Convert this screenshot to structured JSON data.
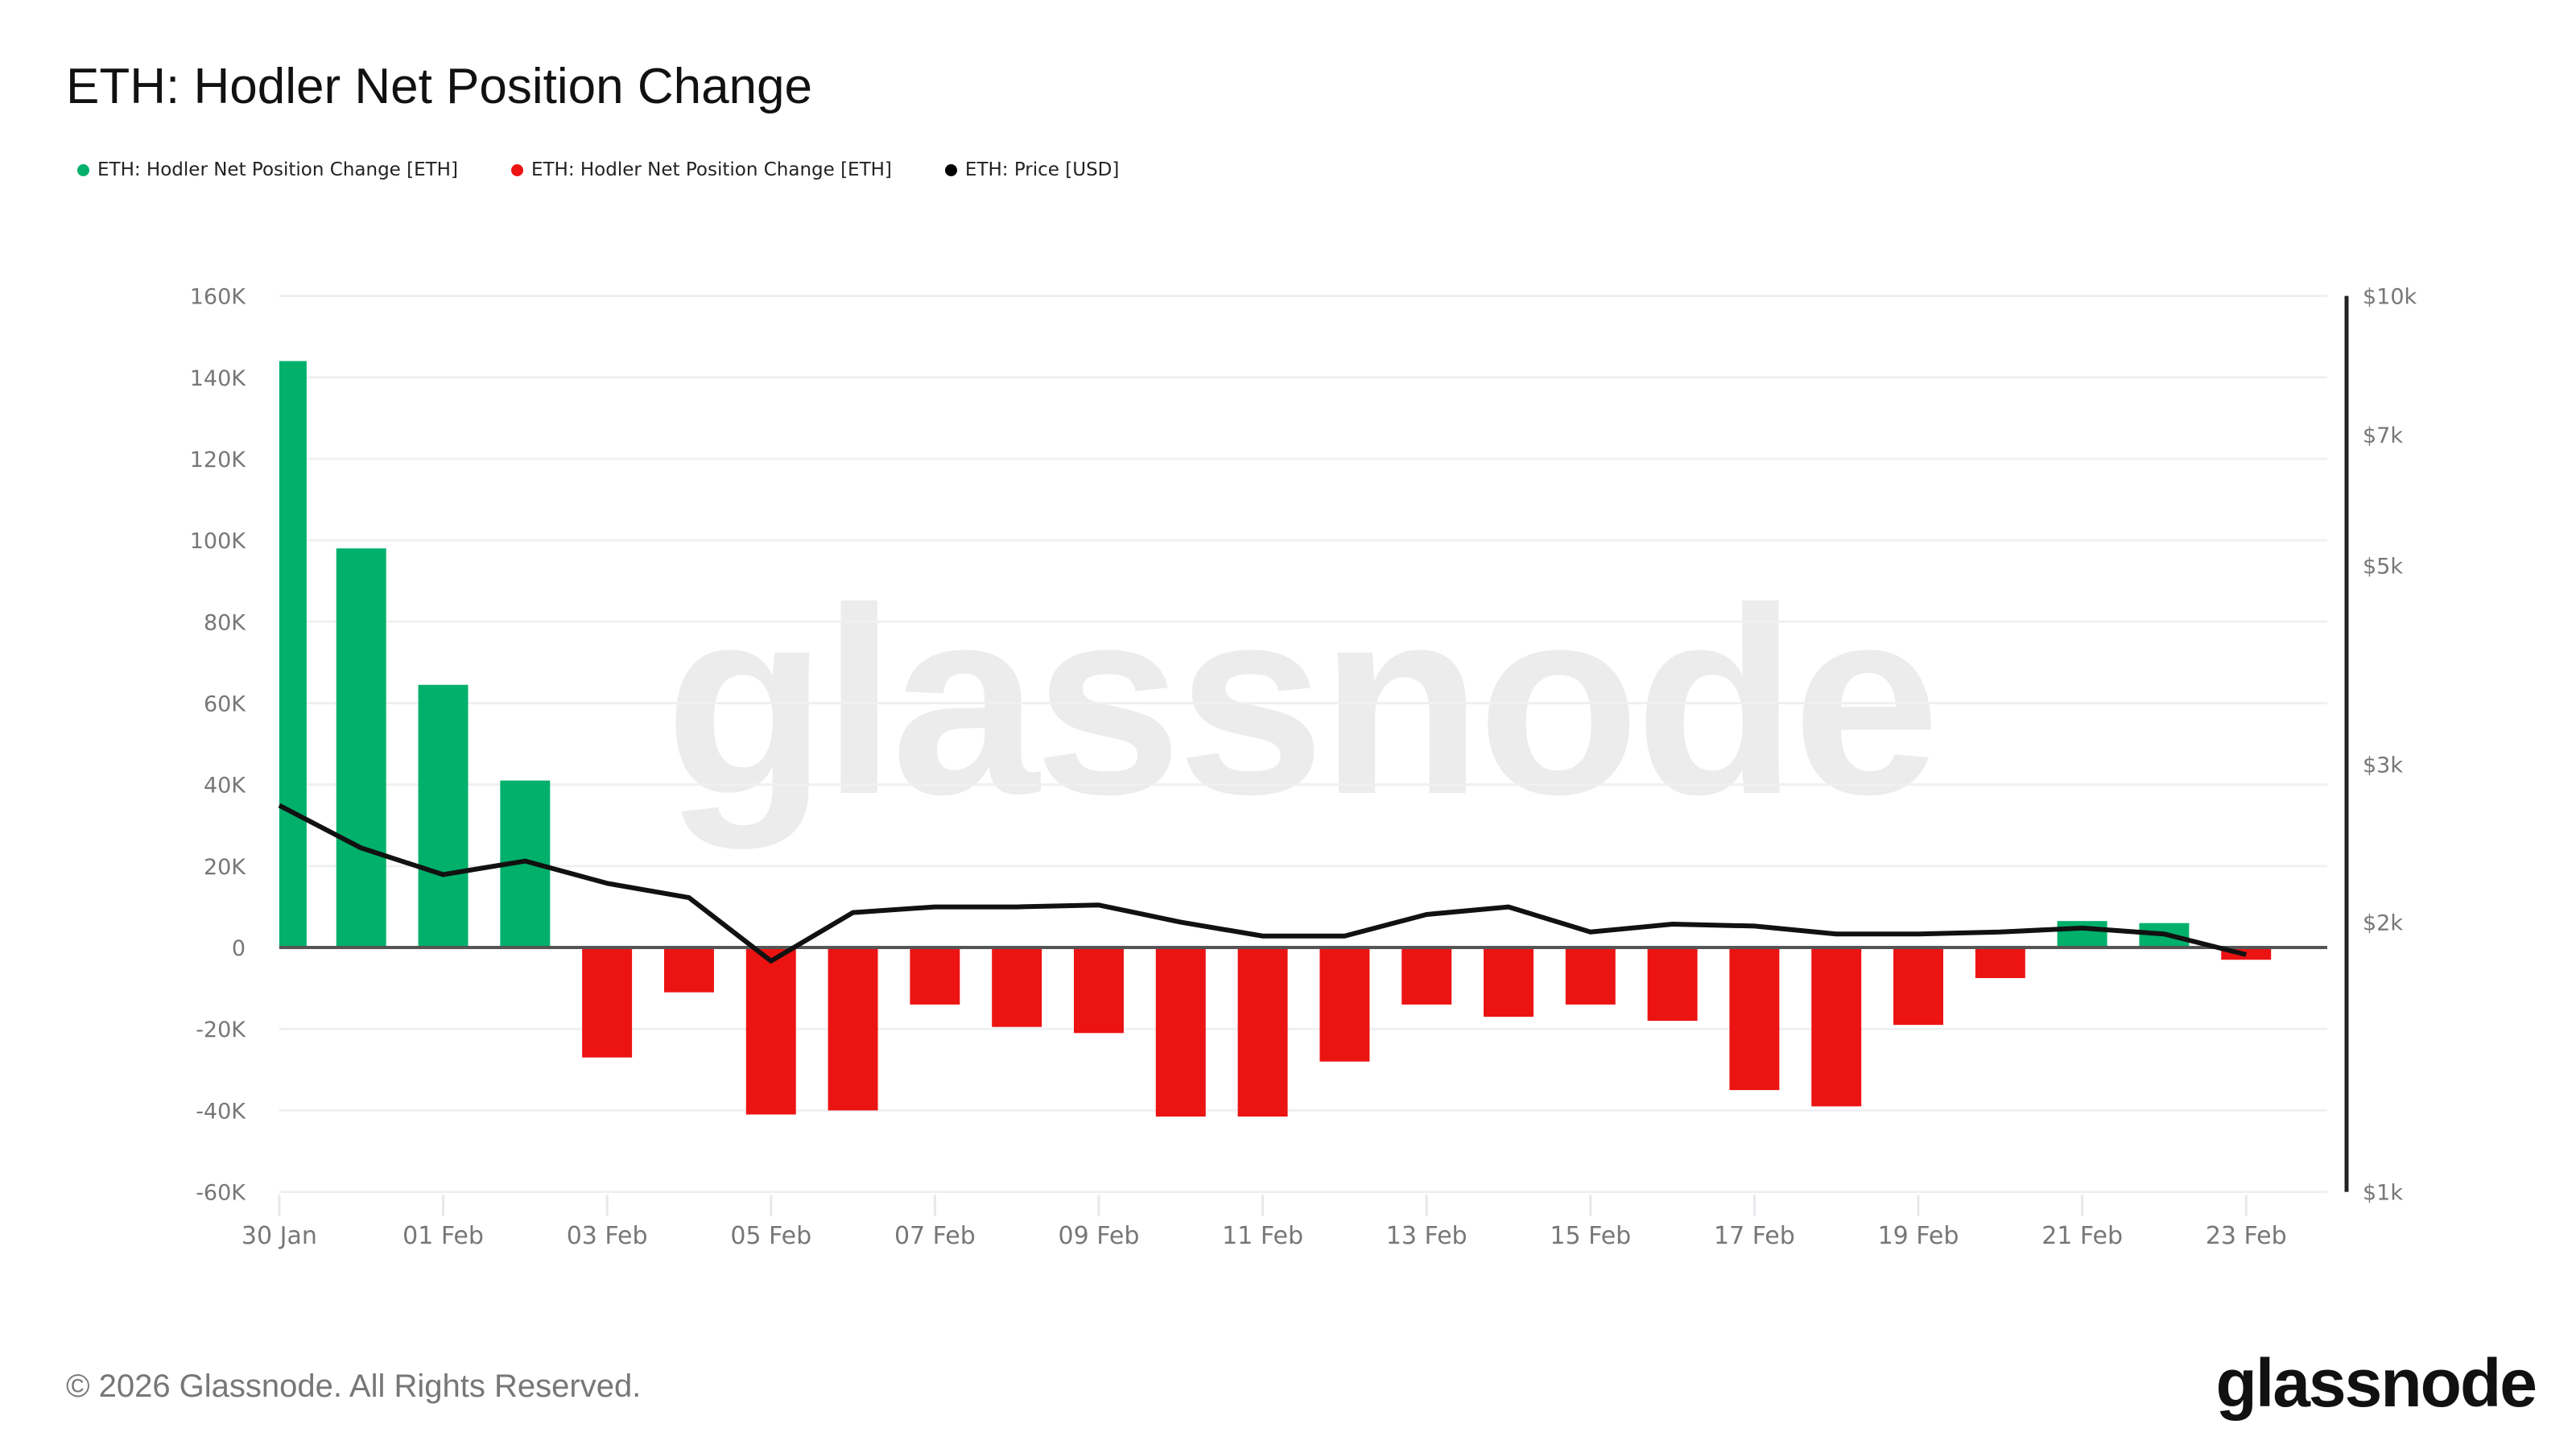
{
  "title": "ETH: Hodler Net Position Change",
  "legend": [
    {
      "label": "ETH: Hodler Net Position Change [ETH]",
      "color": "#00b06b"
    },
    {
      "label": "ETH: Hodler Net Position Change [ETH]",
      "color": "#ec1313"
    },
    {
      "label": "ETH: Price [USD]",
      "color": "#000000"
    }
  ],
  "watermark": "glassnode",
  "footer": {
    "copyright": "© 2026 Glassnode. All Rights Reserved.",
    "logo": "glassnode"
  },
  "chart_data": {
    "type": "bar",
    "title": "ETH: Hodler Net Position Change",
    "xlabel": "",
    "ylabel": "",
    "ylim": [
      -60000,
      160000
    ],
    "y_ticks": [
      "160K",
      "140K",
      "120K",
      "100K",
      "80K",
      "60K",
      "40K",
      "20K",
      "0",
      "-20K",
      "-40K",
      "-60K"
    ],
    "y_right_ticks": [
      "$10k",
      "$7k",
      "$5k",
      "$3k",
      "$2k",
      "$1k"
    ],
    "y_right_scale": "log",
    "y_right_lim": [
      1000,
      10000
    ],
    "x_tick_labels": [
      "30 Jan",
      "01 Feb",
      "03 Feb",
      "05 Feb",
      "07 Feb",
      "09 Feb",
      "11 Feb",
      "13 Feb",
      "15 Feb",
      "17 Feb",
      "19 Feb",
      "21 Feb",
      "23 Feb"
    ],
    "grid": true,
    "legend_position": "top-left",
    "positive_color": "#00b06b",
    "negative_color": "#ec1313",
    "categories": [
      "30 Jan",
      "31 Jan",
      "01 Feb",
      "02 Feb",
      "03 Feb",
      "04 Feb",
      "05 Feb",
      "06 Feb",
      "07 Feb",
      "08 Feb",
      "09 Feb",
      "10 Feb",
      "11 Feb",
      "12 Feb",
      "13 Feb",
      "14 Feb",
      "15 Feb",
      "16 Feb",
      "17 Feb",
      "18 Feb",
      "19 Feb",
      "20 Feb",
      "21 Feb",
      "22 Feb",
      "23 Feb"
    ],
    "series": [
      {
        "name": "ETH: Hodler Net Position Change [ETH]",
        "axis": "left",
        "type": "bar",
        "values": [
          144000,
          98000,
          64500,
          41000,
          -27000,
          -11000,
          -41000,
          -40000,
          -14000,
          -19500,
          -21000,
          -41500,
          -41500,
          -28000,
          -14000,
          -17000,
          -14000,
          -18000,
          -35000,
          -39000,
          -19000,
          -7500,
          6500,
          6000,
          -3000
        ]
      },
      {
        "name": "ETH: Price [USD]",
        "axis": "right",
        "type": "line",
        "values": [
          2700,
          2420,
          2260,
          2340,
          2210,
          2130,
          1810,
          2050,
          2080,
          2080,
          2090,
          2000,
          1930,
          1930,
          2040,
          2080,
          1950,
          1990,
          1980,
          1940,
          1940,
          1950,
          1970,
          1940,
          1840
        ]
      }
    ]
  }
}
